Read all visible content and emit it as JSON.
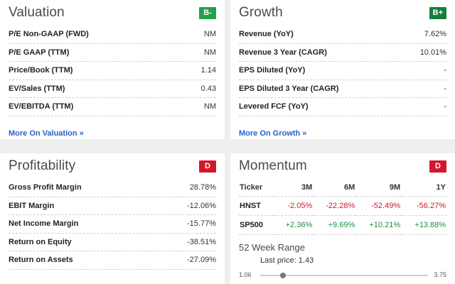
{
  "valuation": {
    "title": "Valuation",
    "grade": "B-",
    "rows": [
      {
        "label": "P/E Non-GAAP (FWD)",
        "value": "NM"
      },
      {
        "label": "P/E GAAP (TTM)",
        "value": "NM"
      },
      {
        "label": "Price/Book (TTM)",
        "value": "1.14"
      },
      {
        "label": "EV/Sales (TTM)",
        "value": "0.43"
      },
      {
        "label": "EV/EBITDA (TTM)",
        "value": "NM"
      }
    ],
    "more": "More On Valuation »"
  },
  "growth": {
    "title": "Growth",
    "grade": "B+",
    "rows": [
      {
        "label": "Revenue (YoY)",
        "value": "7.62%"
      },
      {
        "label": "Revenue 3 Year (CAGR)",
        "value": "10.01%"
      },
      {
        "label": "EPS Diluted (YoY)",
        "value": "-"
      },
      {
        "label": "EPS Diluted 3 Year (CAGR)",
        "value": "-"
      },
      {
        "label": "Levered FCF (YoY)",
        "value": "-"
      }
    ],
    "more": "More On Growth »"
  },
  "profitability": {
    "title": "Profitability",
    "grade": "D",
    "rows": [
      {
        "label": "Gross Profit Margin",
        "value": "28.78%"
      },
      {
        "label": "EBIT Margin",
        "value": "-12.06%"
      },
      {
        "label": "Net Income Margin",
        "value": "-15.77%"
      },
      {
        "label": "Return on Equity",
        "value": "-38.51%"
      },
      {
        "label": "Return on Assets",
        "value": "-27.09%"
      }
    ]
  },
  "momentum": {
    "title": "Momentum",
    "grade": "D",
    "headers": [
      "Ticker",
      "3M",
      "6M",
      "9M",
      "1Y"
    ],
    "rows": [
      {
        "ticker": "HNST",
        "values": [
          "-2.05%",
          "-22.28%",
          "-52.49%",
          "-56.27%"
        ]
      },
      {
        "ticker": "SP500",
        "values": [
          "+2.36%",
          "+9.69%",
          "+10.21%",
          "+13.88%"
        ]
      }
    ],
    "range": {
      "title": "52 Week Range",
      "last_price_label": "Last price: 1.43",
      "low": "1.06",
      "high": "3.75",
      "position_fraction": 0.1375
    }
  },
  "colors": {
    "grade_b_minus": "#24a148",
    "grade_b_plus": "#12813a",
    "grade_d": "#d3182c",
    "negative": "#d3182c",
    "positive": "#1f8f43",
    "link": "#2563c9"
  }
}
